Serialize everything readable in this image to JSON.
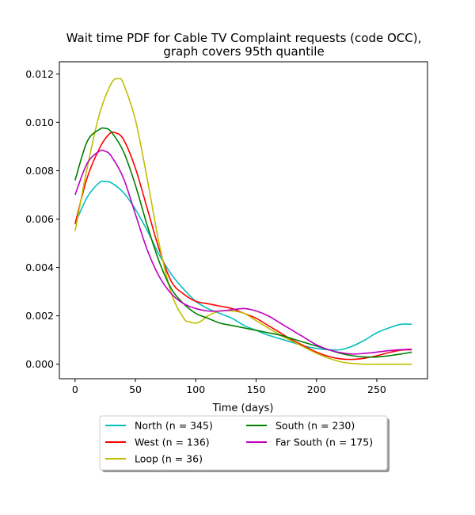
{
  "chart_data": {
    "type": "line",
    "title_line1": "Wait time PDF for Cable TV Complaint  requests (code OCC),",
    "title_line2": "graph covers 95th quantile",
    "xlabel": "Time (days)",
    "ylabel": "",
    "xlim": [
      -13,
      292
    ],
    "ylim": [
      -0.0006,
      0.0125
    ],
    "x_ticks": [
      0,
      50,
      100,
      150,
      200,
      250
    ],
    "x_tick_labels": [
      "0",
      "50",
      "100",
      "150",
      "200",
      "250"
    ],
    "y_ticks": [
      0.0,
      0.002,
      0.004,
      0.006,
      0.008,
      0.01,
      0.012
    ],
    "y_tick_labels": [
      "0.000",
      "0.002",
      "0.004",
      "0.006",
      "0.008",
      "0.010",
      "0.012"
    ],
    "grid": false,
    "legend_position": "below-plot",
    "series": [
      {
        "name": "North (n = 345)",
        "color": "#00bfbf",
        "x": [
          0,
          10,
          20,
          25,
          30,
          40,
          50,
          60,
          70,
          80,
          90,
          100,
          110,
          120,
          130,
          140,
          150,
          160,
          170,
          180,
          190,
          200,
          210,
          220,
          230,
          240,
          250,
          260,
          270,
          279
        ],
        "y": [
          0.0058,
          0.0069,
          0.0075,
          0.00755,
          0.0075,
          0.0071,
          0.0064,
          0.0055,
          0.0045,
          0.0037,
          0.0031,
          0.0026,
          0.0023,
          0.0021,
          0.0019,
          0.0016,
          0.0014,
          0.0012,
          0.00105,
          0.0009,
          0.00075,
          0.00065,
          0.0006,
          0.0006,
          0.00075,
          0.001,
          0.0013,
          0.0015,
          0.00165,
          0.00165
        ]
      },
      {
        "name": "West (n = 136)",
        "color": "#ff0000",
        "x": [
          0,
          10,
          20,
          28,
          33,
          40,
          50,
          60,
          70,
          80,
          90,
          100,
          110,
          120,
          130,
          140,
          150,
          160,
          170,
          180,
          190,
          200,
          210,
          220,
          230,
          240,
          250,
          260,
          270,
          279
        ],
        "y": [
          0.0058,
          0.0077,
          0.0089,
          0.0095,
          0.00957,
          0.0093,
          0.0081,
          0.0064,
          0.0047,
          0.0034,
          0.0029,
          0.0026,
          0.0025,
          0.0024,
          0.0023,
          0.0021,
          0.0019,
          0.0016,
          0.0013,
          0.001,
          0.00075,
          0.0005,
          0.00032,
          0.00022,
          0.0002,
          0.00025,
          0.00035,
          0.00048,
          0.00058,
          0.0006
        ]
      },
      {
        "name": "Loop (n = 36)",
        "color": "#bfbf00",
        "x": [
          0,
          10,
          20,
          30,
          36,
          40,
          50,
          60,
          70,
          80,
          90,
          95,
          100,
          105,
          110,
          120,
          130,
          140,
          150,
          160,
          170,
          180,
          190,
          200,
          210,
          220,
          230,
          240,
          250,
          260,
          270,
          279
        ],
        "y": [
          0.0055,
          0.0081,
          0.0103,
          0.0116,
          0.0118,
          0.0116,
          0.0101,
          0.0076,
          0.0049,
          0.0029,
          0.0019,
          0.00175,
          0.0017,
          0.0018,
          0.002,
          0.0022,
          0.0022,
          0.0021,
          0.0018,
          0.0015,
          0.0012,
          0.00095,
          0.0007,
          0.00045,
          0.00025,
          0.0001,
          3e-05,
          0.0,
          0.0,
          0.0,
          0.0,
          0.0
        ]
      },
      {
        "name": "South (n = 230)",
        "color": "#008000",
        "x": [
          0,
          10,
          20,
          25,
          30,
          40,
          50,
          60,
          70,
          80,
          90,
          100,
          110,
          120,
          130,
          140,
          150,
          160,
          170,
          180,
          190,
          200,
          210,
          220,
          230,
          240,
          250,
          260,
          270,
          279
        ],
        "y": [
          0.0076,
          0.0092,
          0.0097,
          0.00975,
          0.0096,
          0.0088,
          0.0074,
          0.0057,
          0.0042,
          0.0031,
          0.0025,
          0.0021,
          0.0019,
          0.0017,
          0.0016,
          0.0015,
          0.0014,
          0.0013,
          0.0012,
          0.00105,
          0.0009,
          0.00075,
          0.0006,
          0.00045,
          0.00035,
          0.0003,
          0.0003,
          0.00035,
          0.00042,
          0.0005
        ]
      },
      {
        "name": "Far South (n = 175)",
        "color": "#bf00bf",
        "x": [
          0,
          10,
          20,
          25,
          30,
          40,
          50,
          60,
          70,
          80,
          90,
          100,
          110,
          120,
          130,
          140,
          150,
          160,
          170,
          180,
          190,
          200,
          210,
          220,
          230,
          240,
          250,
          260,
          270,
          279
        ],
        "y": [
          0.007,
          0.0083,
          0.0088,
          0.0088,
          0.0086,
          0.0077,
          0.0062,
          0.0047,
          0.0036,
          0.0029,
          0.0025,
          0.0023,
          0.0022,
          0.0022,
          0.00225,
          0.0023,
          0.0022,
          0.002,
          0.0017,
          0.0014,
          0.0011,
          0.0008,
          0.0006,
          0.00048,
          0.00042,
          0.00045,
          0.0005,
          0.00056,
          0.0006,
          0.00062
        ]
      }
    ]
  }
}
